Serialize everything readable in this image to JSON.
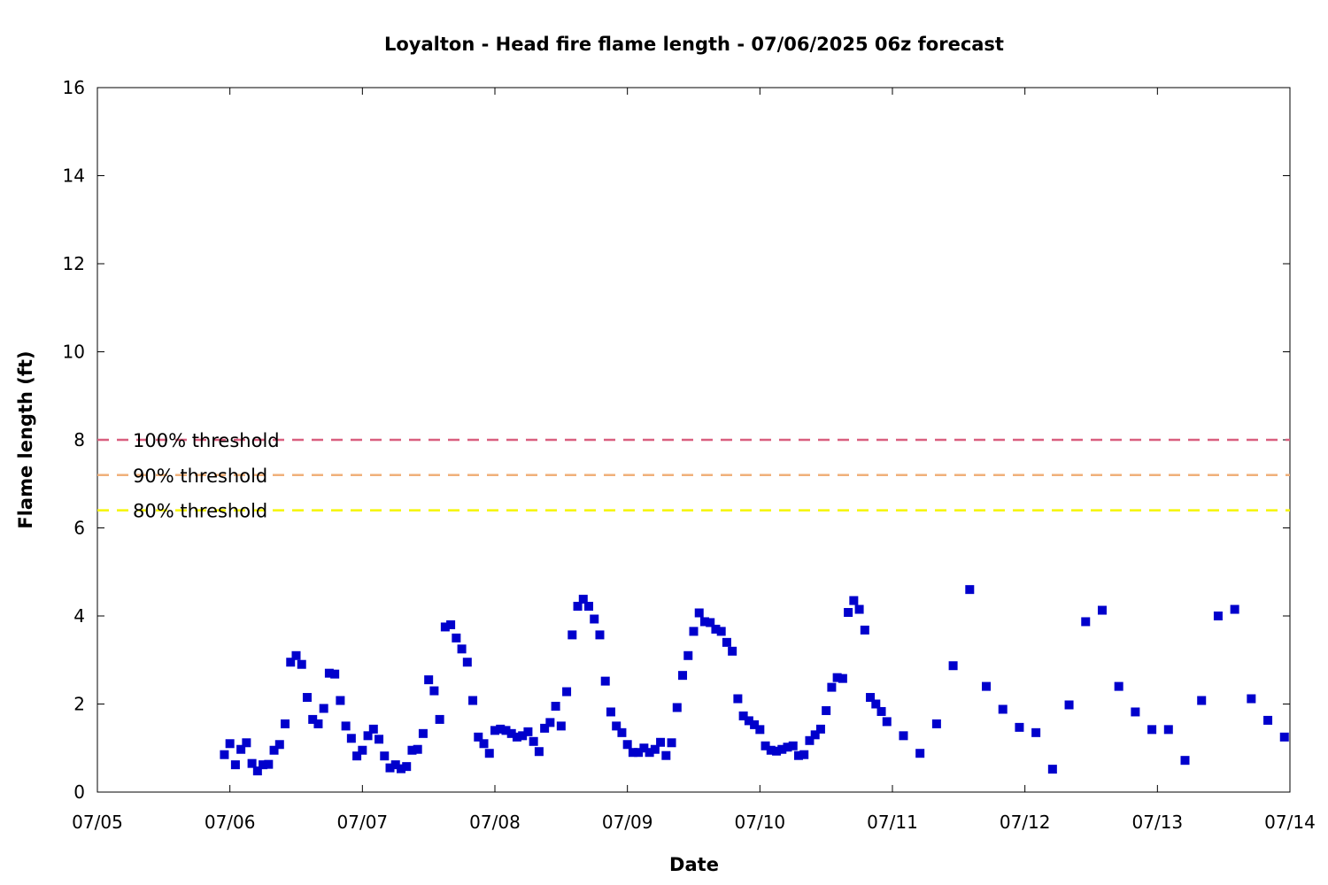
{
  "chart_data": {
    "type": "scatter",
    "title": "Loyalton - Head fire flame length - 07/06/2025 06z forecast",
    "xlabel": "Date",
    "ylabel": "Flame length (ft)",
    "x_unit": "days",
    "xlim": [
      "07/05 00:00",
      "07/14 00:00"
    ],
    "ylim": [
      0,
      16
    ],
    "x_ticks": [
      "07/05",
      "07/06",
      "07/07",
      "07/08",
      "07/09",
      "07/10",
      "07/11",
      "07/12",
      "07/13",
      "07/14"
    ],
    "y_ticks": [
      "0",
      "2",
      "4",
      "6",
      "8",
      "10",
      "12",
      "14",
      "16"
    ],
    "grid": false,
    "marker_color": "#0000cc",
    "thresholds": [
      {
        "label": "100% threshold",
        "value": 8.0,
        "color": "#d95f7f"
      },
      {
        "label": "90% threshold",
        "value": 7.2,
        "color": "#f0b07a"
      },
      {
        "label": "80% threshold",
        "value": 6.4,
        "color": "#f5f500"
      }
    ],
    "series": [
      {
        "color": "#0000cc",
        "points": [
          [
            "07/05 23:00",
            0.85
          ],
          [
            "07/06 00:00",
            1.1
          ],
          [
            "07/06 01:00",
            0.62
          ],
          [
            "07/06 02:00",
            0.97
          ],
          [
            "07/06 03:00",
            1.12
          ],
          [
            "07/06 04:00",
            0.65
          ],
          [
            "07/06 05:00",
            0.48
          ],
          [
            "07/06 06:00",
            0.62
          ],
          [
            "07/06 07:00",
            0.63
          ],
          [
            "07/06 08:00",
            0.95
          ],
          [
            "07/06 09:00",
            1.08
          ],
          [
            "07/06 10:00",
            1.55
          ],
          [
            "07/06 11:00",
            2.95
          ],
          [
            "07/06 12:00",
            3.1
          ],
          [
            "07/06 13:00",
            2.9
          ],
          [
            "07/06 14:00",
            2.15
          ],
          [
            "07/06 15:00",
            1.65
          ],
          [
            "07/06 16:00",
            1.55
          ],
          [
            "07/06 17:00",
            1.9
          ],
          [
            "07/06 18:00",
            2.7
          ],
          [
            "07/06 19:00",
            2.68
          ],
          [
            "07/06 20:00",
            2.08
          ],
          [
            "07/06 21:00",
            1.5
          ],
          [
            "07/06 22:00",
            1.22
          ],
          [
            "07/06 23:00",
            0.82
          ],
          [
            "07/07 00:00",
            0.95
          ],
          [
            "07/07 01:00",
            1.28
          ],
          [
            "07/07 02:00",
            1.43
          ],
          [
            "07/07 03:00",
            1.2
          ],
          [
            "07/07 04:00",
            0.82
          ],
          [
            "07/07 05:00",
            0.55
          ],
          [
            "07/07 06:00",
            0.62
          ],
          [
            "07/07 07:00",
            0.53
          ],
          [
            "07/07 08:00",
            0.58
          ],
          [
            "07/07 09:00",
            0.95
          ],
          [
            "07/07 10:00",
            0.97
          ],
          [
            "07/07 11:00",
            1.33
          ],
          [
            "07/07 12:00",
            2.55
          ],
          [
            "07/07 13:00",
            2.3
          ],
          [
            "07/07 14:00",
            1.65
          ],
          [
            "07/07 15:00",
            3.75
          ],
          [
            "07/07 16:00",
            3.8
          ],
          [
            "07/07 17:00",
            3.5
          ],
          [
            "07/07 18:00",
            3.25
          ],
          [
            "07/07 19:00",
            2.95
          ],
          [
            "07/07 20:00",
            2.08
          ],
          [
            "07/07 21:00",
            1.25
          ],
          [
            "07/07 22:00",
            1.1
          ],
          [
            "07/07 23:00",
            0.88
          ],
          [
            "07/08 00:00",
            1.4
          ],
          [
            "07/08 01:00",
            1.43
          ],
          [
            "07/08 02:00",
            1.4
          ],
          [
            "07/08 03:00",
            1.33
          ],
          [
            "07/08 04:00",
            1.25
          ],
          [
            "07/08 05:00",
            1.28
          ],
          [
            "07/08 06:00",
            1.37
          ],
          [
            "07/08 07:00",
            1.15
          ],
          [
            "07/08 08:00",
            0.92
          ],
          [
            "07/08 09:00",
            1.45
          ],
          [
            "07/08 10:00",
            1.58
          ],
          [
            "07/08 11:00",
            1.95
          ],
          [
            "07/08 12:00",
            1.5
          ],
          [
            "07/08 13:00",
            2.28
          ],
          [
            "07/08 14:00",
            3.57
          ],
          [
            "07/08 15:00",
            4.22
          ],
          [
            "07/08 16:00",
            4.38
          ],
          [
            "07/08 17:00",
            4.22
          ],
          [
            "07/08 18:00",
            3.93
          ],
          [
            "07/08 19:00",
            3.57
          ],
          [
            "07/08 20:00",
            2.52
          ],
          [
            "07/08 21:00",
            1.82
          ],
          [
            "07/08 22:00",
            1.5
          ],
          [
            "07/08 23:00",
            1.35
          ],
          [
            "07/09 00:00",
            1.08
          ],
          [
            "07/09 01:00",
            0.9
          ],
          [
            "07/09 02:00",
            0.9
          ],
          [
            "07/09 03:00",
            1.0
          ],
          [
            "07/09 04:00",
            0.9
          ],
          [
            "07/09 05:00",
            0.97
          ],
          [
            "07/09 06:00",
            1.13
          ],
          [
            "07/09 07:00",
            0.83
          ],
          [
            "07/09 08:00",
            1.12
          ],
          [
            "07/09 09:00",
            1.92
          ],
          [
            "07/09 10:00",
            2.65
          ],
          [
            "07/09 11:00",
            3.1
          ],
          [
            "07/09 12:00",
            3.65
          ],
          [
            "07/09 13:00",
            4.07
          ],
          [
            "07/09 14:00",
            3.87
          ],
          [
            "07/09 15:00",
            3.85
          ],
          [
            "07/09 16:00",
            3.7
          ],
          [
            "07/09 17:00",
            3.65
          ],
          [
            "07/09 18:00",
            3.4
          ],
          [
            "07/09 19:00",
            3.2
          ],
          [
            "07/09 20:00",
            2.12
          ],
          [
            "07/09 21:00",
            1.73
          ],
          [
            "07/09 22:00",
            1.62
          ],
          [
            "07/09 23:00",
            1.53
          ],
          [
            "07/10 00:00",
            1.42
          ],
          [
            "07/10 01:00",
            1.05
          ],
          [
            "07/10 02:00",
            0.95
          ],
          [
            "07/10 03:00",
            0.93
          ],
          [
            "07/10 04:00",
            0.97
          ],
          [
            "07/10 05:00",
            1.02
          ],
          [
            "07/10 06:00",
            1.05
          ],
          [
            "07/10 07:00",
            0.83
          ],
          [
            "07/10 08:00",
            0.85
          ],
          [
            "07/10 09:00",
            1.17
          ],
          [
            "07/10 10:00",
            1.3
          ],
          [
            "07/10 11:00",
            1.43
          ],
          [
            "07/10 12:00",
            1.85
          ],
          [
            "07/10 13:00",
            2.38
          ],
          [
            "07/10 14:00",
            2.6
          ],
          [
            "07/10 15:00",
            2.58
          ],
          [
            "07/10 16:00",
            4.08
          ],
          [
            "07/10 17:00",
            4.35
          ],
          [
            "07/10 18:00",
            4.15
          ],
          [
            "07/10 19:00",
            3.68
          ],
          [
            "07/10 20:00",
            2.15
          ],
          [
            "07/10 21:00",
            2.0
          ],
          [
            "07/10 22:00",
            1.83
          ],
          [
            "07/10 23:00",
            1.6
          ],
          [
            "07/11 02:00",
            1.28
          ],
          [
            "07/11 05:00",
            0.88
          ],
          [
            "07/11 08:00",
            1.55
          ],
          [
            "07/11 11:00",
            2.87
          ],
          [
            "07/11 14:00",
            4.6
          ],
          [
            "07/11 17:00",
            2.4
          ],
          [
            "07/11 20:00",
            1.88
          ],
          [
            "07/11 23:00",
            1.47
          ],
          [
            "07/12 02:00",
            1.35
          ],
          [
            "07/12 05:00",
            0.52
          ],
          [
            "07/12 08:00",
            1.98
          ],
          [
            "07/12 11:00",
            3.87
          ],
          [
            "07/12 14:00",
            4.13
          ],
          [
            "07/12 17:00",
            2.4
          ],
          [
            "07/12 20:00",
            1.82
          ],
          [
            "07/12 23:00",
            1.42
          ],
          [
            "07/13 02:00",
            1.42
          ],
          [
            "07/13 05:00",
            0.72
          ],
          [
            "07/13 08:00",
            2.08
          ],
          [
            "07/13 11:00",
            4.0
          ],
          [
            "07/13 14:00",
            4.15
          ],
          [
            "07/13 17:00",
            2.12
          ],
          [
            "07/13 20:00",
            1.63
          ],
          [
            "07/13 23:00",
            1.25
          ]
        ]
      }
    ]
  }
}
